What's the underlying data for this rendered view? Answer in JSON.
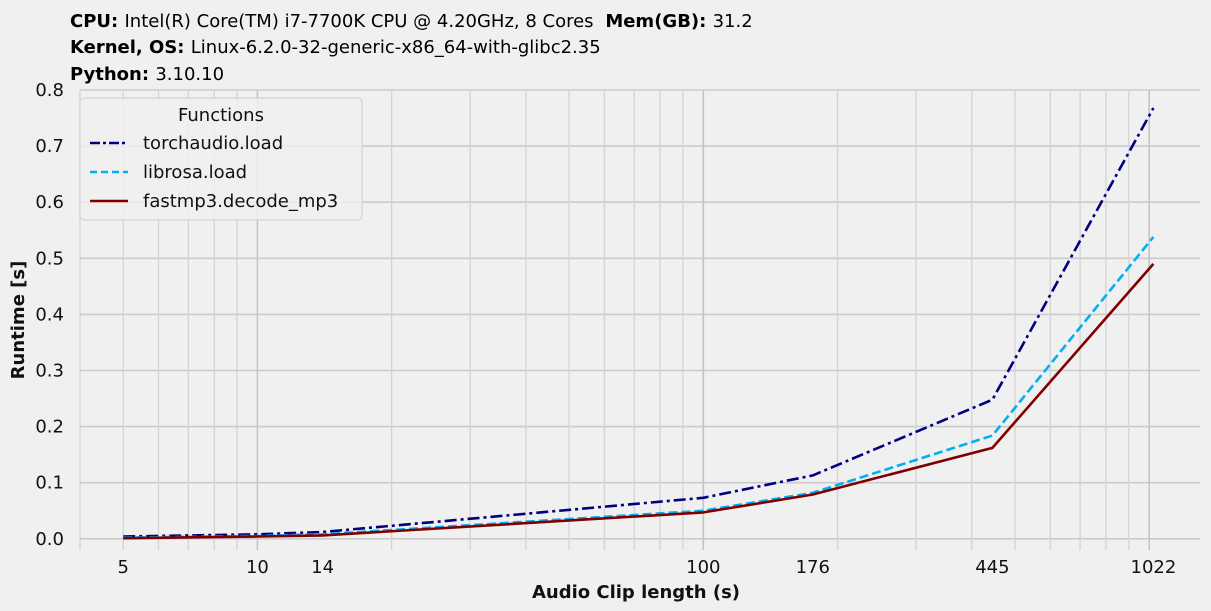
{
  "header": {
    "cpu_label": "CPU",
    "cpu_value": "Intel(R) Core(TM) i7-7700K CPU @ 4.20GHz, 8 Cores",
    "mem_label": "Mem(GB)",
    "mem_value": "31.2",
    "kernel_label": "Kernel, OS",
    "kernel_value": "Linux-6.2.0-32-generic-x86_64-with-glibc2.35",
    "python_label": "Python",
    "python_value": "3.10.10"
  },
  "chart_data": {
    "type": "line",
    "xlabel": "Audio Clip length (s)",
    "ylabel": "Runtime [s]",
    "xscale": "log",
    "xlim": [
      4,
      1300
    ],
    "ylim": [
      -0.02,
      0.8
    ],
    "x_ticks": [
      5,
      10,
      14,
      100,
      176,
      445,
      1022
    ],
    "y_ticks": [
      0.0,
      0.1,
      0.2,
      0.3,
      0.4,
      0.5,
      0.6,
      0.7,
      0.8
    ],
    "grid": true,
    "legend": {
      "title": "Functions",
      "placement": "top-left"
    },
    "x": [
      5,
      10,
      14,
      100,
      176,
      445,
      1022
    ],
    "series": [
      {
        "name": "torchaudio.load",
        "color": "#000080",
        "dash": "dashdot",
        "values": [
          0.004,
          0.008,
          0.012,
          0.073,
          0.113,
          0.248,
          0.768
        ]
      },
      {
        "name": "librosa.load",
        "color": "#00b0f0",
        "dash": "dashed",
        "values": [
          0.002,
          0.005,
          0.008,
          0.05,
          0.082,
          0.184,
          0.538
        ]
      },
      {
        "name": "fastmp3.decode_mp3",
        "color": "#800000",
        "dash": "solid",
        "values": [
          0.001,
          0.004,
          0.006,
          0.047,
          0.079,
          0.162,
          0.49
        ]
      }
    ]
  }
}
